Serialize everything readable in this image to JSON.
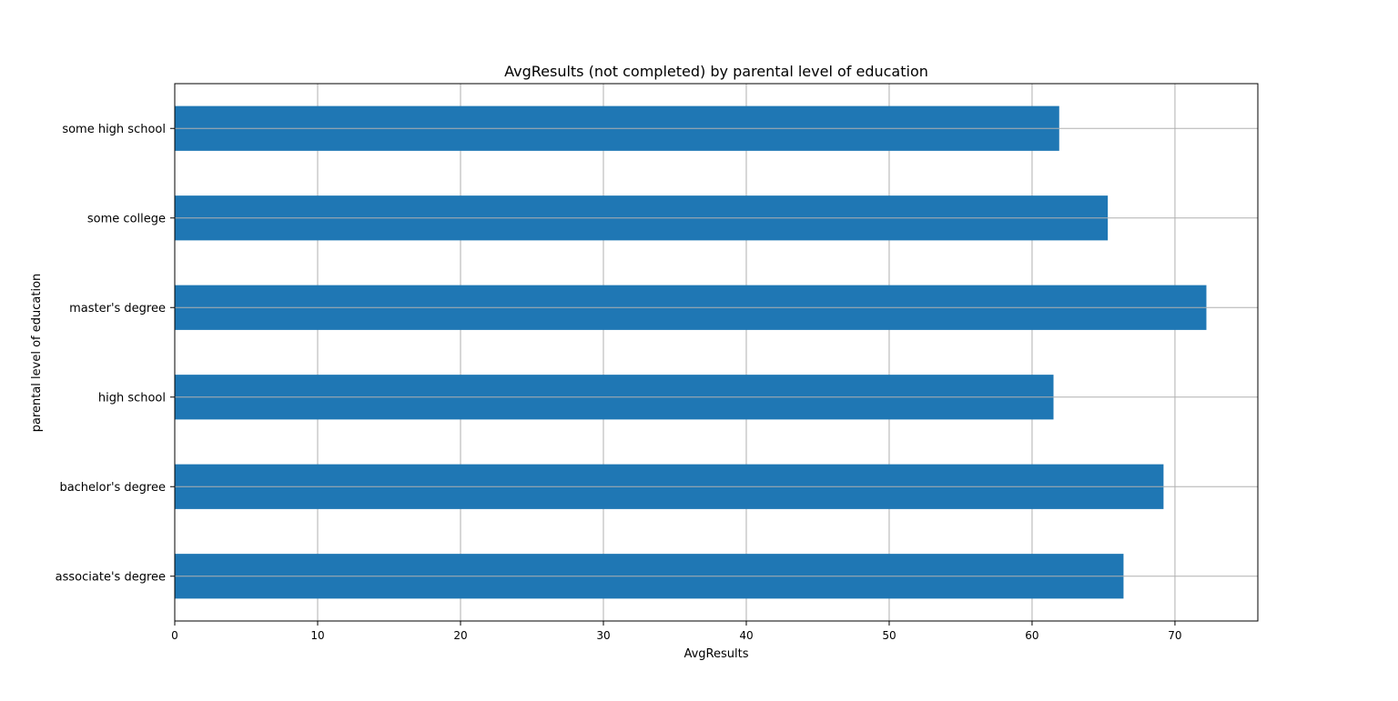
{
  "chart_data": {
    "type": "bar",
    "orientation": "horizontal",
    "title": "AvgResults (not completed) by parental level of education",
    "xlabel": "AvgResults",
    "ylabel": "parental level of education",
    "categories": [
      "associate's degree",
      "bachelor's degree",
      "high school",
      "master's degree",
      "some college",
      "some high school"
    ],
    "values": [
      66.4,
      69.2,
      61.5,
      72.2,
      65.3,
      61.9
    ],
    "xlim": [
      0,
      75.8
    ],
    "xticks": [
      0,
      10,
      20,
      30,
      40,
      50,
      60,
      70
    ],
    "grid": true,
    "bar_color": "#1f77b4",
    "grid_color": "#b0b0b0"
  }
}
